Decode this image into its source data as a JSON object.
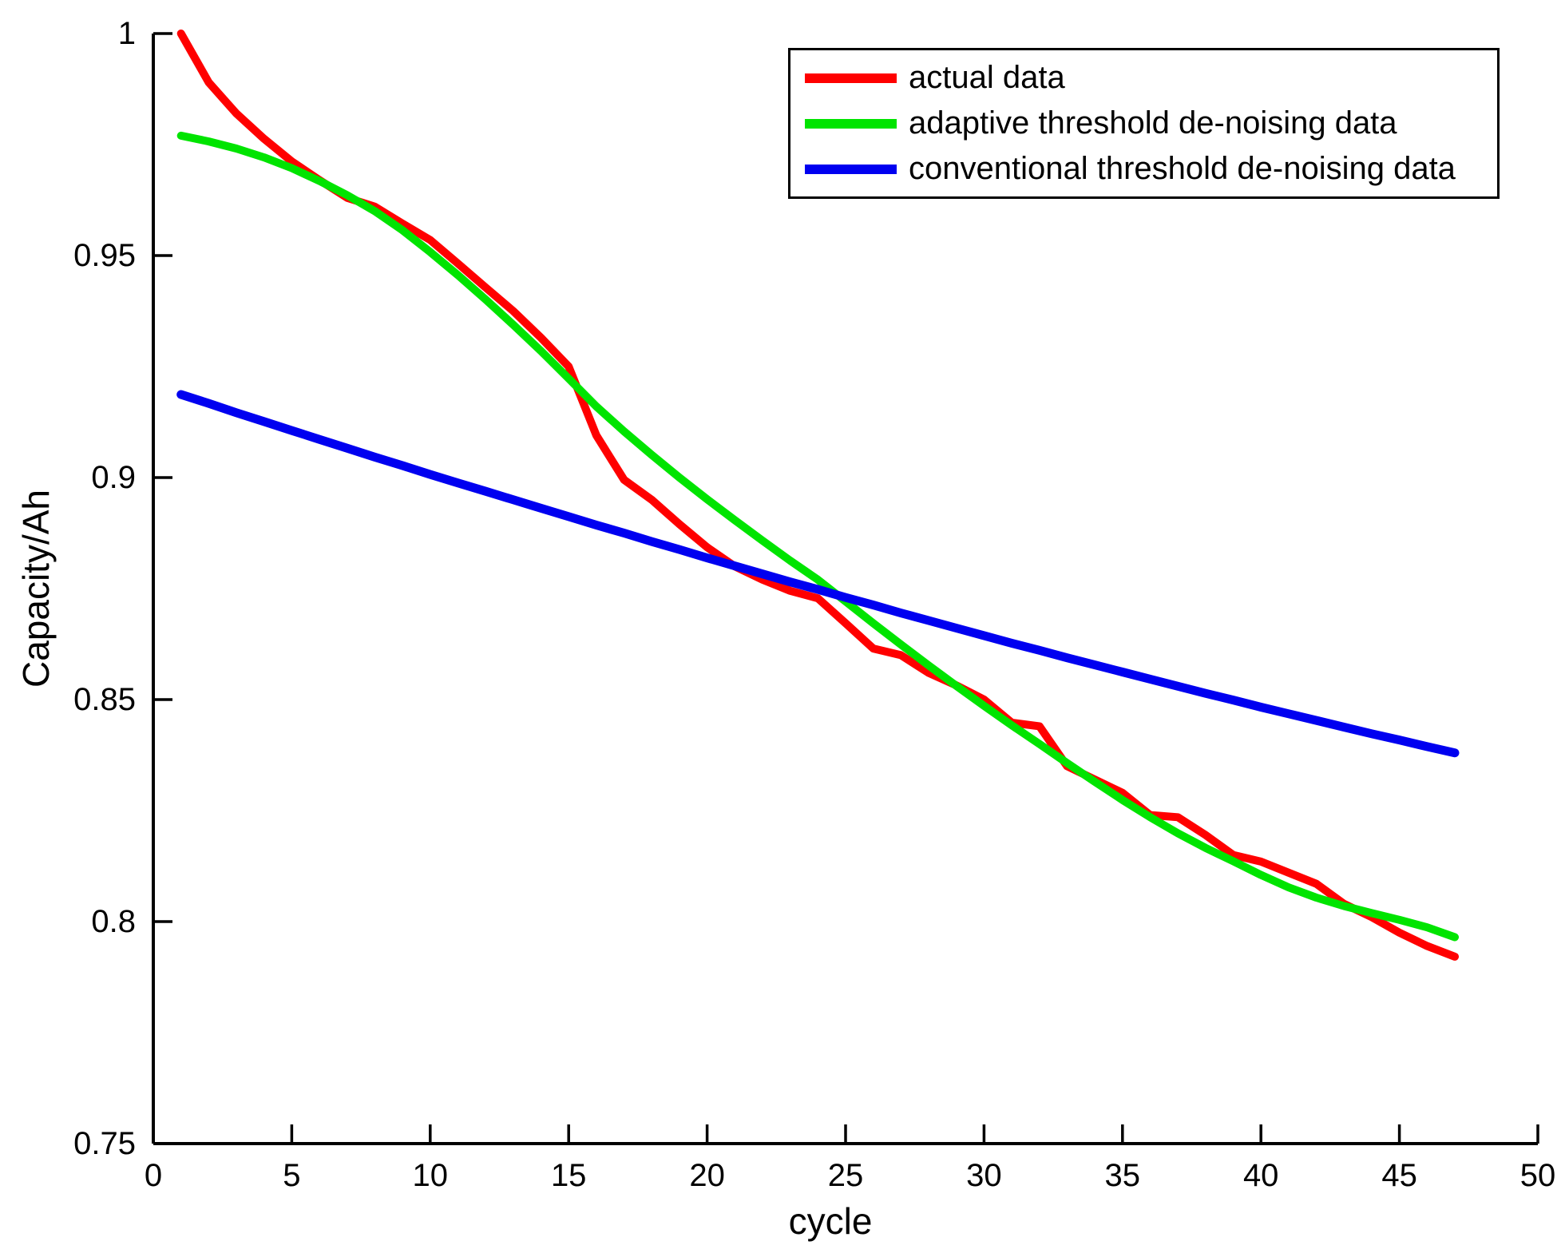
{
  "figure": {
    "background": "#ffffff",
    "axis_color": "#000000"
  },
  "chart_data": {
    "type": "line",
    "title": "",
    "xlabel": "cycle",
    "ylabel": "Capacity/Ah",
    "xlim": [
      0,
      50
    ],
    "ylim": [
      0.75,
      1.0
    ],
    "grid": false,
    "legend_position": "upper right",
    "xticks": [
      0,
      5,
      10,
      15,
      20,
      25,
      30,
      35,
      40,
      45,
      50
    ],
    "xtick_labels": [
      "0",
      "5",
      "10",
      "15",
      "20",
      "25",
      "30",
      "35",
      "40",
      "45",
      "50"
    ],
    "ytick_values": [
      0.75,
      0.8,
      0.85,
      0.9,
      0.95,
      1.0
    ],
    "ytick_labels": [
      "0.75",
      "0.8",
      "0.85",
      "0.9",
      "0.95",
      "1"
    ],
    "x": [
      1,
      2,
      3,
      4,
      5,
      6,
      7,
      8,
      9,
      10,
      11,
      12,
      13,
      14,
      15,
      16,
      17,
      18,
      19,
      20,
      21,
      22,
      23,
      24,
      25,
      26,
      27,
      28,
      29,
      30,
      31,
      32,
      33,
      34,
      35,
      36,
      37,
      38,
      39,
      40,
      41,
      42,
      43,
      44,
      45,
      46,
      47
    ],
    "series": [
      {
        "name": "actual data",
        "color": "#ff0000",
        "values": [
          1.0,
          0.989,
          0.982,
          0.9763,
          0.9712,
          0.967,
          0.963,
          0.961,
          0.9572,
          0.9535,
          0.9482,
          0.9428,
          0.9375,
          0.9315,
          0.925,
          0.9095,
          0.8995,
          0.895,
          0.8895,
          0.8843,
          0.88,
          0.877,
          0.8745,
          0.8728,
          0.8672,
          0.8615,
          0.86,
          0.856,
          0.8532,
          0.85,
          0.8448,
          0.844,
          0.835,
          0.832,
          0.829,
          0.824,
          0.8235,
          0.8195,
          0.815,
          0.8135,
          0.811,
          0.8085,
          0.804,
          0.801,
          0.7975,
          0.7945,
          0.7921
        ]
      },
      {
        "name": "adaptive threshold de-noising data",
        "color": "#00e400",
        "values": [
          0.977,
          0.9757,
          0.9741,
          0.9721,
          0.9697,
          0.9668,
          0.9636,
          0.96,
          0.9557,
          0.9508,
          0.9456,
          0.9401,
          0.9344,
          0.9285,
          0.9223,
          0.916,
          0.9104,
          0.9051,
          0.9,
          0.8951,
          0.8904,
          0.8858,
          0.8813,
          0.877,
          0.8721,
          0.8672,
          0.8624,
          0.8577,
          0.8531,
          0.8486,
          0.8442,
          0.84,
          0.8357,
          0.8315,
          0.8274,
          0.8235,
          0.8199,
          0.8166,
          0.8136,
          0.8105,
          0.8077,
          0.8054,
          0.8035,
          0.8019,
          0.8004,
          0.7987,
          0.7965
        ]
      },
      {
        "name": "conventional threshold de-noising data",
        "color": "#0000f0",
        "values": [
          0.9187,
          0.9167,
          0.9146,
          0.9126,
          0.9106,
          0.9086,
          0.9066,
          0.9046,
          0.9027,
          0.9007,
          0.8988,
          0.8969,
          0.895,
          0.8931,
          0.8912,
          0.8893,
          0.8875,
          0.8856,
          0.8838,
          0.8819,
          0.8801,
          0.8783,
          0.8765,
          0.8748,
          0.873,
          0.8713,
          0.8695,
          0.8678,
          0.8661,
          0.8644,
          0.8627,
          0.8611,
          0.8594,
          0.8578,
          0.8562,
          0.8546,
          0.853,
          0.8514,
          0.8499,
          0.8483,
          0.8468,
          0.8453,
          0.8438,
          0.8423,
          0.8409,
          0.8394,
          0.838
        ]
      }
    ]
  }
}
